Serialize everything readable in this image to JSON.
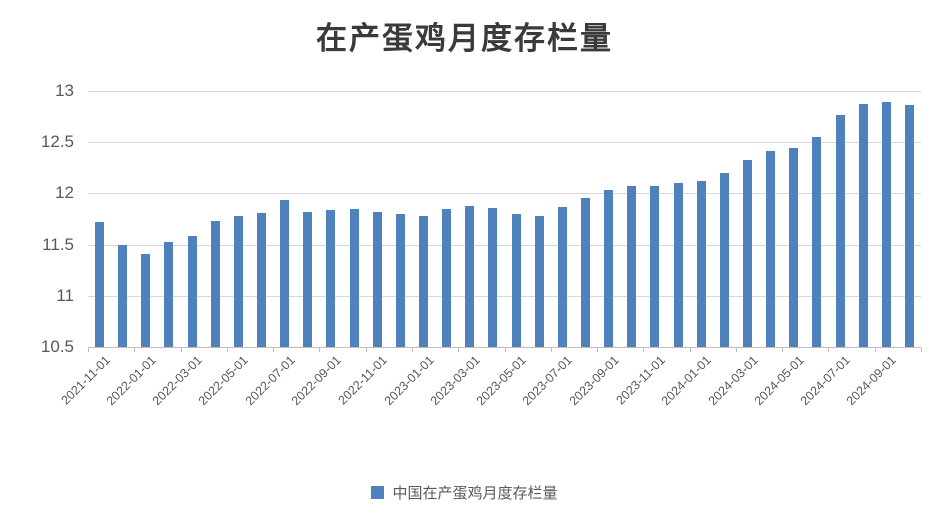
{
  "title": "在产蛋鸡月度存栏量",
  "legend": {
    "label": "中国在产蛋鸡月度存栏量"
  },
  "colors": {
    "bar": "#4F81BD",
    "gridline": "#D9D9D9",
    "axis_line": "#BFBFBF",
    "tick_text": "#595959",
    "title_text": "#3A3A3A",
    "background": "#FFFFFF"
  },
  "chart_data": {
    "type": "bar",
    "title": "在产蛋鸡月度存栏量",
    "categories": [
      "2021-11-01",
      "2021-12-01",
      "2022-01-01",
      "2022-02-01",
      "2022-03-01",
      "2022-04-01",
      "2022-05-01",
      "2022-06-01",
      "2022-07-01",
      "2022-08-01",
      "2022-09-01",
      "2022-10-01",
      "2022-11-01",
      "2022-12-01",
      "2023-01-01",
      "2023-02-01",
      "2023-03-01",
      "2023-04-01",
      "2023-05-01",
      "2023-06-01",
      "2023-07-01",
      "2023-08-01",
      "2023-09-01",
      "2023-10-01",
      "2023-11-01",
      "2023-12-01",
      "2024-01-01",
      "2024-02-01",
      "2024-03-01",
      "2024-04-01",
      "2024-05-01",
      "2024-06-01",
      "2024-07-01",
      "2024-08-01",
      "2024-09-01",
      "2024-10-01"
    ],
    "series": [
      {
        "name": "中国在产蛋鸡月度存栏量",
        "values": [
          11.72,
          11.5,
          11.41,
          11.53,
          11.58,
          11.73,
          11.78,
          11.81,
          11.94,
          11.82,
          11.84,
          11.85,
          11.82,
          11.8,
          11.78,
          11.85,
          11.88,
          11.86,
          11.8,
          11.78,
          11.87,
          11.96,
          12.03,
          12.07,
          12.07,
          12.1,
          12.12,
          12.2,
          12.33,
          12.41,
          12.44,
          12.55,
          12.77,
          12.87,
          12.89,
          12.86
        ]
      }
    ],
    "xlabel": "",
    "ylabel": "",
    "ylim": [
      10.5,
      13
    ],
    "y_ticks": [
      10.5,
      11,
      11.5,
      12,
      12.5,
      13
    ],
    "x_tick_label_every": 2,
    "x_tick_label_rotation_deg": -45,
    "grid": "horizontal-only",
    "legend_position": "bottom"
  }
}
